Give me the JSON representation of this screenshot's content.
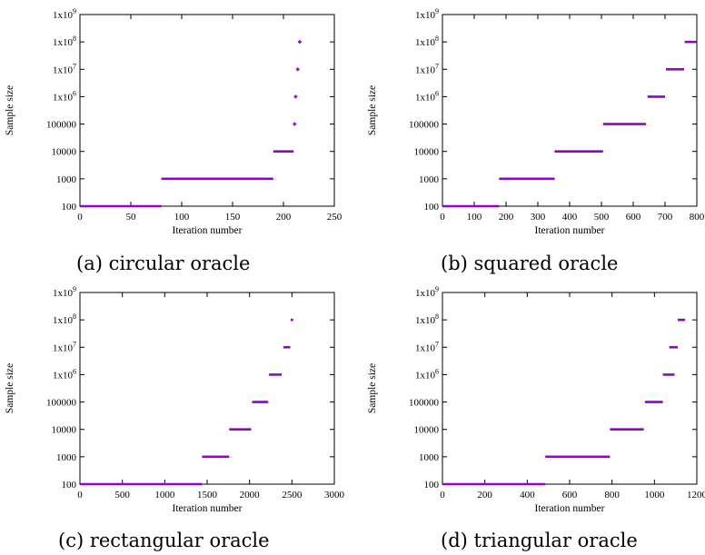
{
  "chart_data": [
    {
      "type": "scatter",
      "caption": "(a) circular oracle",
      "xlabel": "Iteration number",
      "ylabel": "Sample size",
      "xlim": [
        0,
        250
      ],
      "ylim": [
        100,
        1000000000
      ],
      "yscale": "log",
      "grid": false,
      "color": "#9400D3",
      "xticks": [
        0,
        50,
        100,
        150,
        200,
        250
      ],
      "xtick_labels": [
        "0",
        "50",
        "100",
        "150",
        "200",
        "250"
      ],
      "yticks": [
        100,
        1000,
        10000,
        100000,
        1000000,
        10000000,
        100000000,
        1000000000
      ],
      "ytick_labels": [
        "100",
        "1000",
        "10000",
        "100000",
        "1x10",
        "1x10",
        "1x10",
        "1x10"
      ],
      "ytick_exponents": [
        "",
        "",
        "",
        "",
        "6",
        "7",
        "8",
        "9"
      ],
      "segments": [
        {
          "x_start": 0,
          "x_end": 80,
          "y": 100
        },
        {
          "x_start": 80,
          "x_end": 190,
          "y": 1000
        },
        {
          "x_start": 190,
          "x_end": 210,
          "y": 10000
        }
      ],
      "points": [
        {
          "x": 211,
          "y": 100000
        },
        {
          "x": 212,
          "y": 1000000
        },
        {
          "x": 214,
          "y": 10000000
        },
        {
          "x": 216,
          "y": 100000000
        }
      ]
    },
    {
      "type": "scatter",
      "caption": "(b) squared oracle",
      "xlabel": "Iteration number",
      "ylabel": "Sample size",
      "xlim": [
        0,
        800
      ],
      "ylim": [
        100,
        1000000000
      ],
      "yscale": "log",
      "grid": false,
      "color": "#9400D3",
      "xticks": [
        0,
        100,
        200,
        300,
        400,
        500,
        600,
        700,
        800
      ],
      "xtick_labels": [
        "0",
        "100",
        "200",
        "300",
        "400",
        "500",
        "600",
        "700",
        "800"
      ],
      "yticks": [
        100,
        1000,
        10000,
        100000,
        1000000,
        10000000,
        100000000,
        1000000000
      ],
      "ytick_labels": [
        "100",
        "1000",
        "10000",
        "100000",
        "1x10",
        "1x10",
        "1x10",
        "1x10"
      ],
      "ytick_exponents": [
        "",
        "",
        "",
        "",
        "6",
        "7",
        "8",
        "9"
      ],
      "segments": [
        {
          "x_start": 0,
          "x_end": 178,
          "y": 100
        },
        {
          "x_start": 178,
          "x_end": 353,
          "y": 1000
        },
        {
          "x_start": 353,
          "x_end": 505,
          "y": 10000
        },
        {
          "x_start": 505,
          "x_end": 640,
          "y": 100000
        },
        {
          "x_start": 645,
          "x_end": 700,
          "y": 1000000
        },
        {
          "x_start": 703,
          "x_end": 760,
          "y": 10000000
        },
        {
          "x_start": 762,
          "x_end": 800,
          "y": 100000000
        }
      ],
      "points": []
    },
    {
      "type": "scatter",
      "caption": "(c) rectangular oracle",
      "xlabel": "Iteration number",
      "ylabel": "Sample size",
      "xlim": [
        0,
        3000
      ],
      "ylim": [
        100,
        1000000000
      ],
      "yscale": "log",
      "grid": false,
      "color": "#9400D3",
      "xticks": [
        0,
        500,
        1000,
        1500,
        2000,
        2500,
        3000
      ],
      "xtick_labels": [
        "0",
        "500",
        "1000",
        "1500",
        "2000",
        "2500",
        "3000"
      ],
      "yticks": [
        100,
        1000,
        10000,
        100000,
        1000000,
        10000000,
        100000000,
        1000000000
      ],
      "ytick_labels": [
        "100",
        "1000",
        "10000",
        "100000",
        "1x10",
        "1x10",
        "1x10",
        "1x10"
      ],
      "ytick_exponents": [
        "",
        "",
        "",
        "",
        "6",
        "7",
        "8",
        "9"
      ],
      "segments": [
        {
          "x_start": 0,
          "x_end": 1440,
          "y": 100
        },
        {
          "x_start": 1440,
          "x_end": 1760,
          "y": 1000
        },
        {
          "x_start": 1760,
          "x_end": 2020,
          "y": 10000
        },
        {
          "x_start": 2030,
          "x_end": 2220,
          "y": 100000
        },
        {
          "x_start": 2230,
          "x_end": 2380,
          "y": 1000000
        },
        {
          "x_start": 2400,
          "x_end": 2480,
          "y": 10000000
        },
        {
          "x_start": 2485,
          "x_end": 2515,
          "y": 100000000
        }
      ],
      "points": []
    },
    {
      "type": "scatter",
      "caption": "(d) triangular oracle",
      "xlabel": "Iteration number",
      "ylabel": "Sample size",
      "xlim": [
        0,
        1200
      ],
      "ylim": [
        100,
        1000000000
      ],
      "yscale": "log",
      "grid": false,
      "color": "#9400D3",
      "xticks": [
        0,
        200,
        400,
        600,
        800,
        1000,
        1200
      ],
      "xtick_labels": [
        "0",
        "200",
        "400",
        "600",
        "800",
        "1000",
        "1200"
      ],
      "yticks": [
        100,
        1000,
        10000,
        100000,
        1000000,
        10000000,
        100000000,
        1000000000
      ],
      "ytick_labels": [
        "100",
        "1000",
        "10000",
        "100000",
        "1x10",
        "1x10",
        "1x10",
        "1x10"
      ],
      "ytick_exponents": [
        "",
        "",
        "",
        "",
        "6",
        "7",
        "8",
        "9"
      ],
      "segments": [
        {
          "x_start": 0,
          "x_end": 485,
          "y": 100
        },
        {
          "x_start": 485,
          "x_end": 790,
          "y": 1000
        },
        {
          "x_start": 790,
          "x_end": 950,
          "y": 10000
        },
        {
          "x_start": 955,
          "x_end": 1040,
          "y": 100000
        },
        {
          "x_start": 1040,
          "x_end": 1095,
          "y": 1000000
        },
        {
          "x_start": 1070,
          "x_end": 1110,
          "y": 10000000
        },
        {
          "x_start": 1110,
          "x_end": 1145,
          "y": 100000000
        }
      ],
      "points": []
    }
  ]
}
